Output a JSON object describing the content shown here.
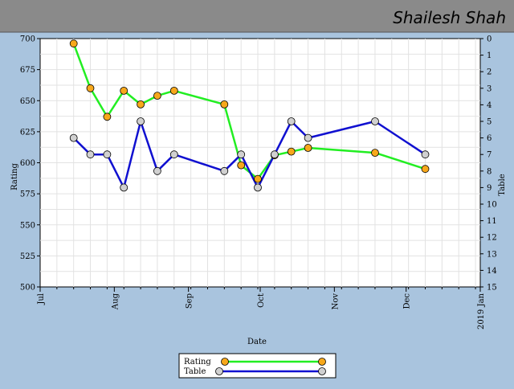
{
  "header": {
    "title": "Shailesh Shah"
  },
  "chart_data": {
    "type": "line",
    "title": "Shailesh Shah",
    "xlabel": "Date",
    "ylabel": "Rating",
    "y2label": "Table",
    "ylim": [
      500,
      700
    ],
    "y2lim": [
      0,
      15
    ],
    "y2_inverted": true,
    "yticks": [
      500,
      525,
      550,
      575,
      600,
      625,
      650,
      675,
      700
    ],
    "y2ticks": [
      0,
      1,
      2,
      3,
      4,
      5,
      6,
      7,
      8,
      9,
      10,
      11,
      12,
      13,
      14,
      15
    ],
    "xlim": [
      "2018-07-01",
      "2019-01-01"
    ],
    "xtick_labels": [
      {
        "date": "2018-07-01",
        "label": "Jul"
      },
      {
        "date": "2018-08-01",
        "label": "Aug"
      },
      {
        "date": "2018-09-01",
        "label": "Sep"
      },
      {
        "date": "2018-10-01",
        "label": "Oct"
      },
      {
        "date": "2018-11-01",
        "label": "Nov"
      },
      {
        "date": "2018-12-01",
        "label": "Dec"
      },
      {
        "date": "2019-01-01",
        "label": "2019 Jan"
      }
    ],
    "grid": true,
    "legend_position": "bottom-center",
    "series": [
      {
        "name": "Rating",
        "axis": "left",
        "line_color": "#22ee22",
        "marker_color": "#f7a81b",
        "points": [
          {
            "x": "2018-07-15",
            "y": 696
          },
          {
            "x": "2018-07-22",
            "y": 660
          },
          {
            "x": "2018-07-29",
            "y": 637
          },
          {
            "x": "2018-08-05",
            "y": 658
          },
          {
            "x": "2018-08-12",
            "y": 647
          },
          {
            "x": "2018-08-19",
            "y": 654
          },
          {
            "x": "2018-08-26",
            "y": 658
          },
          {
            "x": "2018-09-16",
            "y": 647
          },
          {
            "x": "2018-09-23",
            "y": 598
          },
          {
            "x": "2018-09-30",
            "y": 587
          },
          {
            "x": "2018-10-07",
            "y": 606
          },
          {
            "x": "2018-10-14",
            "y": 609
          },
          {
            "x": "2018-10-21",
            "y": 612
          },
          {
            "x": "2018-11-18",
            "y": 608
          },
          {
            "x": "2018-12-09",
            "y": 595
          }
        ]
      },
      {
        "name": "Table",
        "axis": "right",
        "line_color": "#1010d0",
        "marker_color": "#d0d0d0",
        "points": [
          {
            "x": "2018-07-15",
            "y": 6
          },
          {
            "x": "2018-07-22",
            "y": 7
          },
          {
            "x": "2018-07-29",
            "y": 7
          },
          {
            "x": "2018-08-05",
            "y": 9
          },
          {
            "x": "2018-08-12",
            "y": 5
          },
          {
            "x": "2018-08-19",
            "y": 8
          },
          {
            "x": "2018-08-26",
            "y": 7
          },
          {
            "x": "2018-09-16",
            "y": 8
          },
          {
            "x": "2018-09-23",
            "y": 7
          },
          {
            "x": "2018-09-30",
            "y": 9
          },
          {
            "x": "2018-10-07",
            "y": 7
          },
          {
            "x": "2018-10-14",
            "y": 5
          },
          {
            "x": "2018-10-21",
            "y": 6
          },
          {
            "x": "2018-11-18",
            "y": 5
          },
          {
            "x": "2018-12-09",
            "y": 7
          }
        ]
      }
    ]
  }
}
